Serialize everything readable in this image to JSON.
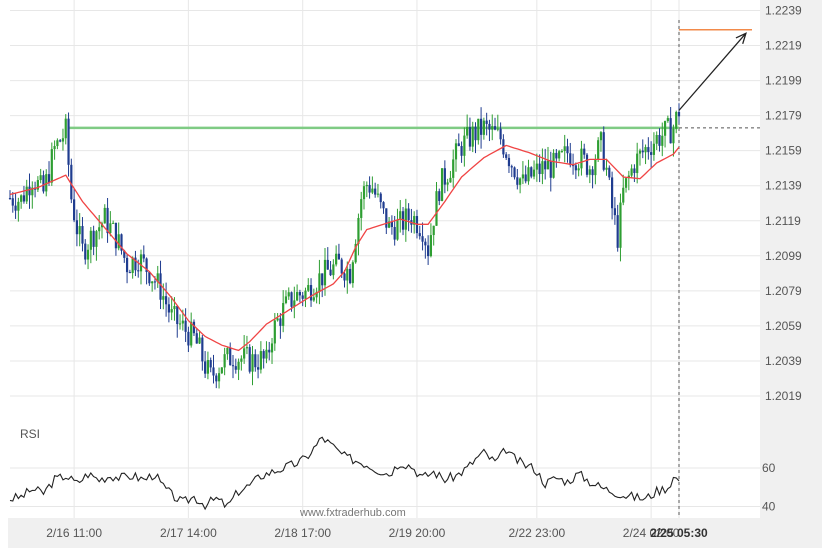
{
  "chart_data": [
    {
      "type": "candlestick",
      "name": "price",
      "y_ticks": [
        "1.2239",
        "1.2219",
        "1.2199",
        "1.2179",
        "1.2159",
        "1.2139",
        "1.2119",
        "1.2099",
        "1.2079",
        "1.2059",
        "1.2039",
        "1.2019"
      ],
      "ylim": [
        1.2011,
        1.2245
      ],
      "x_ticks": [
        "2/16 11:00",
        "2/17 14:00",
        "2/18 17:00",
        "2/19 20:00",
        "2/22 23:00",
        "2/24 02:00",
        "2/25 05:30"
      ],
      "last_tick_bold": true,
      "close_path": [
        [
          0,
          1.2132
        ],
        [
          4,
          1.2131
        ],
        [
          8,
          1.2144
        ],
        [
          12,
          1.2135
        ],
        [
          16,
          1.216
        ],
        [
          20,
          1.217
        ],
        [
          22,
          1.2132
        ],
        [
          24,
          1.2115
        ],
        [
          26,
          1.2102
        ],
        [
          30,
          1.2112
        ],
        [
          34,
          1.212
        ],
        [
          38,
          1.211
        ],
        [
          42,
          1.2094
        ],
        [
          46,
          1.2098
        ],
        [
          50,
          1.209
        ],
        [
          54,
          1.208
        ],
        [
          58,
          1.2064
        ],
        [
          62,
          1.2058
        ],
        [
          66,
          1.2052
        ],
        [
          68,
          1.2045
        ],
        [
          70,
          1.2036
        ],
        [
          72,
          1.203
        ],
        [
          76,
          1.2038
        ],
        [
          80,
          1.2042
        ],
        [
          84,
          1.204
        ],
        [
          88,
          1.2039
        ],
        [
          90,
          1.204
        ],
        [
          92,
          1.2038
        ],
        [
          94,
          1.2055
        ],
        [
          98,
          1.2068
        ],
        [
          102,
          1.2076
        ],
        [
          106,
          1.2078
        ],
        [
          110,
          1.2085
        ],
        [
          114,
          1.209
        ],
        [
          118,
          1.2094
        ],
        [
          122,
          1.209
        ],
        [
          124,
          1.2112
        ],
        [
          126,
          1.2132
        ],
        [
          128,
          1.214
        ],
        [
          130,
          1.2138
        ],
        [
          132,
          1.213
        ],
        [
          134,
          1.2122
        ],
        [
          136,
          1.2115
        ],
        [
          140,
          1.2117
        ],
        [
          144,
          1.2122
        ],
        [
          148,
          1.2115
        ],
        [
          150,
          1.2103
        ],
        [
          152,
          1.2122
        ],
        [
          154,
          1.2138
        ],
        [
          158,
          1.215
        ],
        [
          162,
          1.2162
        ],
        [
          166,
          1.2168
        ],
        [
          170,
          1.2172
        ],
        [
          172,
          1.217
        ],
        [
          176,
          1.2166
        ],
        [
          180,
          1.2152
        ],
        [
          184,
          1.214
        ],
        [
          188,
          1.2146
        ],
        [
          192,
          1.215
        ],
        [
          196,
          1.215
        ],
        [
          200,
          1.2158
        ],
        [
          204,
          1.2155
        ],
        [
          208,
          1.215
        ],
        [
          212,
          1.2162
        ],
        [
          214,
          1.2148
        ],
        [
          216,
          1.2126
        ],
        [
          218,
          1.211
        ],
        [
          220,
          1.2135
        ],
        [
          224,
          1.2152
        ],
        [
          228,
          1.216
        ],
        [
          232,
          1.2166
        ],
        [
          236,
          1.217
        ],
        [
          238,
          1.2172
        ],
        [
          240,
          1.2182
        ]
      ],
      "moving_average": [
        [
          0,
          1.2134
        ],
        [
          10,
          1.2138
        ],
        [
          20,
          1.2145
        ],
        [
          26,
          1.213
        ],
        [
          34,
          1.2115
        ],
        [
          42,
          1.21
        ],
        [
          50,
          1.209
        ],
        [
          58,
          1.2075
        ],
        [
          64,
          1.2062
        ],
        [
          70,
          1.2053
        ],
        [
          76,
          1.2048
        ],
        [
          82,
          1.2045
        ],
        [
          86,
          1.205
        ],
        [
          92,
          1.206
        ],
        [
          100,
          1.2068
        ],
        [
          108,
          1.2076
        ],
        [
          116,
          1.2083
        ],
        [
          120,
          1.209
        ],
        [
          124,
          1.2104
        ],
        [
          128,
          1.2114
        ],
        [
          134,
          1.2117
        ],
        [
          140,
          1.212
        ],
        [
          146,
          1.2117
        ],
        [
          150,
          1.2117
        ],
        [
          156,
          1.213
        ],
        [
          162,
          1.2144
        ],
        [
          170,
          1.2155
        ],
        [
          178,
          1.2162
        ],
        [
          186,
          1.2158
        ],
        [
          194,
          1.2153
        ],
        [
          202,
          1.2151
        ],
        [
          208,
          1.2154
        ],
        [
          214,
          1.2154
        ],
        [
          220,
          1.2144
        ],
        [
          226,
          1.2143
        ],
        [
          232,
          1.2152
        ],
        [
          238,
          1.2157
        ],
        [
          240,
          1.2161
        ]
      ],
      "bar_count": 241,
      "resistance_level": 1.2172,
      "target_level": 1.2228,
      "current_level": 1.2172,
      "arrow": {
        "from": [
          240,
          1.2182
        ],
        "to": [
          264,
          1.2226
        ]
      },
      "colors": {
        "up": "#2e9e32",
        "down": "#1f3c8f",
        "ma": "#f04444",
        "resistance": "#7fcb84",
        "target": "#f28a4a",
        "arrow": "#222222",
        "grid": "#e7e7e7",
        "axis_bg": "#f0f0f0"
      }
    },
    {
      "type": "line",
      "name": "rsi",
      "title": "RSI",
      "y_ticks": [
        "60",
        "40"
      ],
      "ylim": [
        34,
        85
      ],
      "values": [
        [
          0,
          44
        ],
        [
          4,
          45
        ],
        [
          8,
          49
        ],
        [
          12,
          47
        ],
        [
          16,
          54
        ],
        [
          20,
          56
        ],
        [
          24,
          52
        ],
        [
          28,
          57
        ],
        [
          32,
          54
        ],
        [
          36,
          56
        ],
        [
          40,
          55
        ],
        [
          44,
          56
        ],
        [
          48,
          54
        ],
        [
          52,
          57
        ],
        [
          54,
          52
        ],
        [
          58,
          46
        ],
        [
          62,
          42
        ],
        [
          66,
          45
        ],
        [
          70,
          41
        ],
        [
          74,
          44
        ],
        [
          78,
          40
        ],
        [
          82,
          48
        ],
        [
          86,
          51
        ],
        [
          90,
          56
        ],
        [
          94,
          58
        ],
        [
          98,
          60
        ],
        [
          102,
          62
        ],
        [
          106,
          65
        ],
        [
          110,
          72
        ],
        [
          112,
          76
        ],
        [
          116,
          71
        ],
        [
          120,
          66
        ],
        [
          124,
          64
        ],
        [
          128,
          62
        ],
        [
          132,
          59
        ],
        [
          136,
          57
        ],
        [
          140,
          63
        ],
        [
          144,
          61
        ],
        [
          148,
          55
        ],
        [
          152,
          58
        ],
        [
          156,
          54
        ],
        [
          160,
          56
        ],
        [
          164,
          60
        ],
        [
          168,
          66
        ],
        [
          170,
          68
        ],
        [
          174,
          63
        ],
        [
          176,
          66
        ],
        [
          178,
          70
        ],
        [
          180,
          66
        ],
        [
          184,
          62
        ],
        [
          188,
          60
        ],
        [
          192,
          52
        ],
        [
          196,
          55
        ],
        [
          200,
          53
        ],
        [
          204,
          57
        ],
        [
          208,
          53
        ],
        [
          212,
          50
        ],
        [
          216,
          48
        ],
        [
          220,
          46
        ],
        [
          224,
          45
        ],
        [
          228,
          44
        ],
        [
          232,
          48
        ],
        [
          236,
          50
        ],
        [
          238,
          55
        ],
        [
          240,
          54
        ]
      ],
      "color": "#222222"
    }
  ],
  "watermark": "www.fxtraderhub.com"
}
